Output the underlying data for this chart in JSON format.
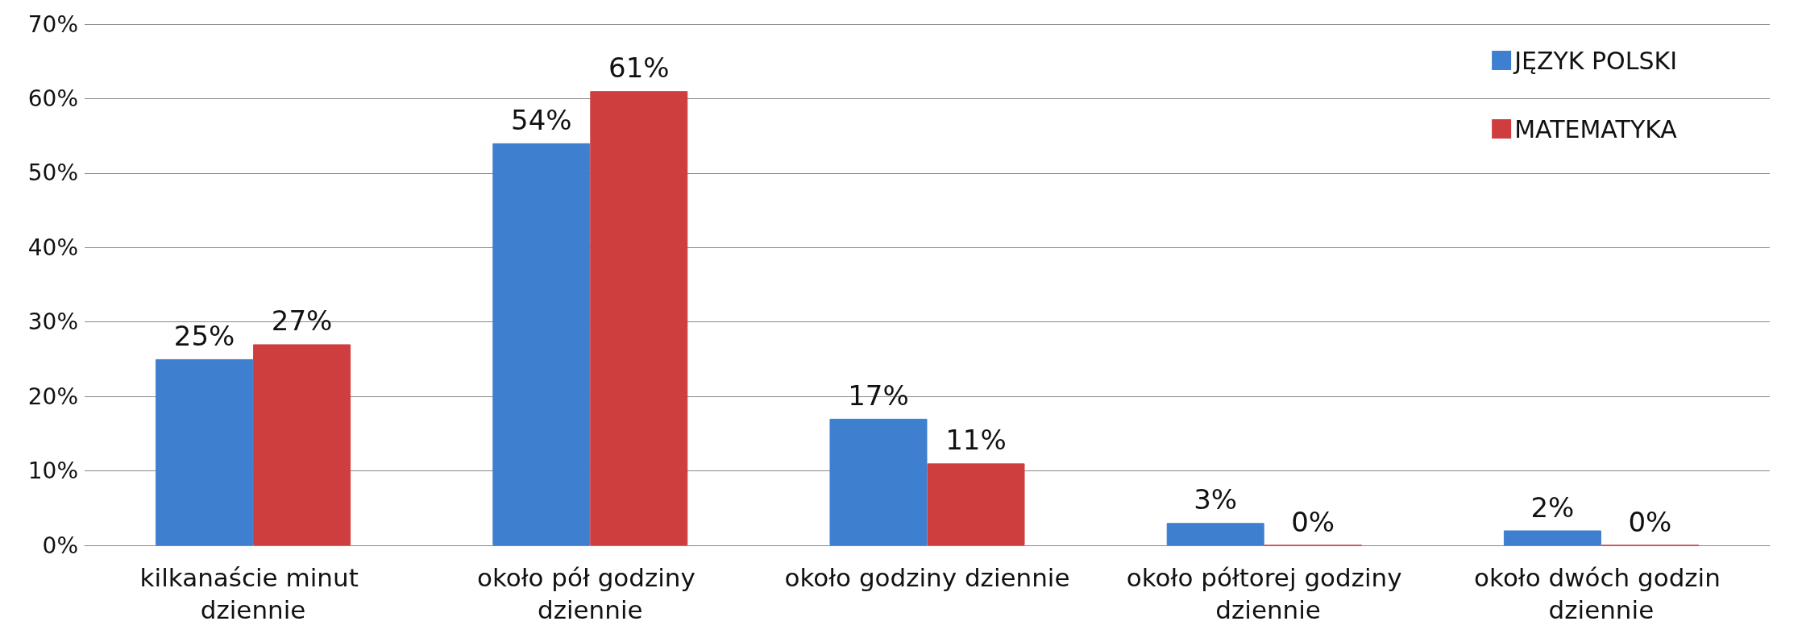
{
  "chart_data": {
    "type": "bar",
    "categories": [
      "kilkanaście minut dziennie",
      "około pół godziny dziennie",
      "około godziny dziennie",
      "około półtorej godziny dziennie",
      "około dwóch godzin dziennie"
    ],
    "series": [
      {
        "name": "JĘZYK POLSKI",
        "color": "#3f7fcf",
        "values": [
          25,
          54,
          17,
          3,
          2
        ],
        "value_labels": [
          "25%",
          "54%",
          "17%",
          "3%",
          "2%"
        ]
      },
      {
        "name": "MATEMATYKA",
        "color": "#cf3e3e",
        "values": [
          27,
          61,
          11,
          0,
          0
        ],
        "value_labels": [
          "27%",
          "61%",
          "11%",
          "0%",
          "0%"
        ]
      }
    ],
    "ylim": [
      0,
      70
    ],
    "yticks": [
      {
        "value": 0,
        "label": "0%"
      },
      {
        "value": 10,
        "label": "10%"
      },
      {
        "value": 20,
        "label": "20%"
      },
      {
        "value": 30,
        "label": "30%"
      },
      {
        "value": 40,
        "label": "40%"
      },
      {
        "value": 50,
        "label": "50%"
      },
      {
        "value": 60,
        "label": "60%"
      },
      {
        "value": 70,
        "label": "70%"
      }
    ],
    "grid": "y",
    "legend": "top right"
  }
}
